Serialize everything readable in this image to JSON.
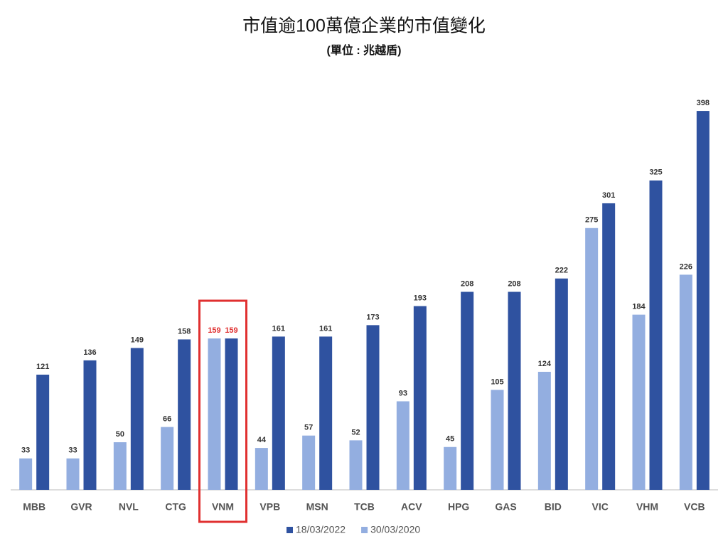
{
  "chart_data": {
    "type": "bar",
    "title": "市值逾100萬億企業的市值變化",
    "subtitle": "(單位 : 兆越盾)",
    "categories": [
      "MBB",
      "GVR",
      "NVL",
      "CTG",
      "VNM",
      "VPB",
      "MSN",
      "TCB",
      "ACV",
      "HPG",
      "GAS",
      "BID",
      "VIC",
      "VHM",
      "VCB"
    ],
    "series": [
      {
        "name": "18/03/2022",
        "color": "#2f52a0",
        "values": [
          121,
          136,
          149,
          158,
          159,
          161,
          161,
          173,
          193,
          208,
          208,
          222,
          301,
          325,
          398
        ]
      },
      {
        "name": "30/03/2020",
        "color": "#93aee0",
        "values": [
          33,
          33,
          50,
          66,
          159,
          44,
          57,
          52,
          93,
          45,
          105,
          124,
          275,
          184,
          226
        ]
      }
    ],
    "ylim": [
      0,
      410
    ],
    "highlight_category": "VNM",
    "highlight_color": "#e03030",
    "legend": "bottom"
  }
}
